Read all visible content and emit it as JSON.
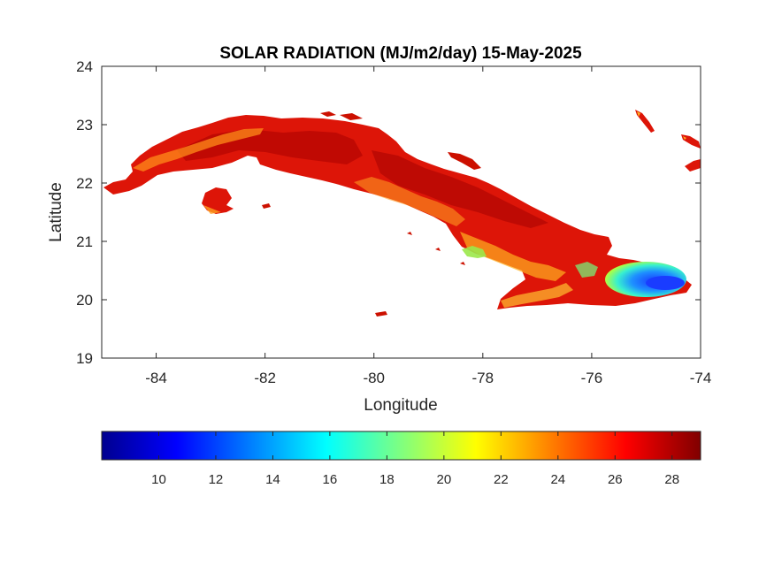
{
  "map": {
    "title": "SOLAR RADIATION (MJ/m2/day) 15-May-2025",
    "xlabel": "Longitude",
    "ylabel": "Latitude",
    "xlim": [
      -85,
      -74
    ],
    "ylim": [
      19,
      24
    ],
    "xticks": [
      -84,
      -82,
      -80,
      -78,
      -76,
      -74
    ],
    "yticks": [
      19,
      20,
      21,
      22,
      23,
      24
    ],
    "x_tick_labels": [
      "-84",
      "-82",
      "-80",
      "-78",
      "-76",
      "-74"
    ],
    "y_tick_labels": [
      "19",
      "20",
      "21",
      "22",
      "23",
      "24"
    ],
    "region": "Cuba",
    "colormap": "jet",
    "dominant_color": "#e11a0c",
    "low_value_color": "#1a3cff"
  },
  "colorbar": {
    "range": [
      8,
      29
    ],
    "ticks": [
      10,
      12,
      14,
      16,
      18,
      20,
      22,
      24,
      26,
      28
    ],
    "tick_labels": [
      "10",
      "12",
      "14",
      "16",
      "18",
      "20",
      "22",
      "24",
      "26",
      "28"
    ],
    "orientation": "horizontal",
    "placement": "bottom"
  }
}
